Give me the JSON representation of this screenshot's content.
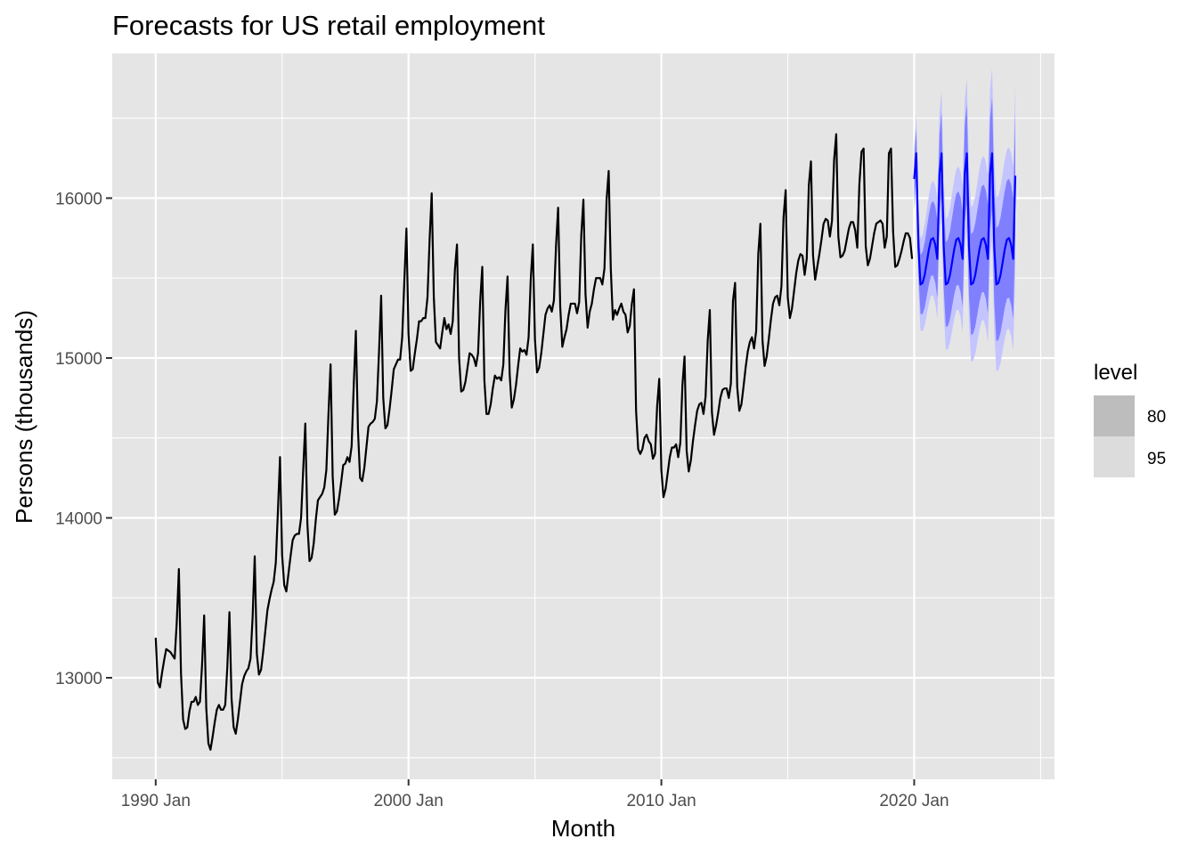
{
  "chart_data": {
    "type": "line",
    "title": "Forecasts for US retail employment",
    "xlabel": "Month",
    "ylabel": "Persons (thousands)",
    "x_ticks": [
      {
        "label": "1990 Jan",
        "t": 1990.0
      },
      {
        "label": "2000 Jan",
        "t": 2000.0
      },
      {
        "label": "2010 Jan",
        "t": 2010.0
      },
      {
        "label": "2020 Jan",
        "t": 2020.0
      }
    ],
    "y_ticks": [
      13000,
      14000,
      15000,
      16000
    ],
    "xlim": [
      1988.28,
      2025.55
    ],
    "ylim": [
      12365,
      16905
    ],
    "grid": true,
    "legend": {
      "title": "level",
      "position": "right",
      "entries": [
        {
          "label": "80",
          "color": "#bdbdbd"
        },
        {
          "label": "95",
          "color": "#dcdcdc"
        }
      ]
    },
    "colors": {
      "history": "#000000",
      "forecast": "#0000ff",
      "band_80": "#8080ff",
      "band_95": "#c4c4ff",
      "panel": "#e5e5e5",
      "grid": "#ffffff"
    },
    "history": {
      "start": "1990 Jan",
      "frequency": "monthly",
      "annual_pattern": [
        {
          "year": 1990,
          "values": [
            13250,
            12970,
            12940,
            13030,
            13110,
            13180,
            13170,
            13160,
            13140,
            13120,
            13350,
            13680
          ]
        },
        {
          "year": 1991,
          "values": [
            13030,
            12740,
            12680,
            12690,
            12790,
            12850,
            12850,
            12880,
            12830,
            12850,
            13080,
            13390
          ]
        },
        {
          "year": 1992,
          "values": [
            12810,
            12590,
            12550,
            12630,
            12720,
            12800,
            12830,
            12800,
            12800,
            12830,
            13070,
            13410
          ]
        },
        {
          "year": 1993,
          "values": [
            12870,
            12690,
            12650,
            12740,
            12850,
            12960,
            13010,
            13040,
            13060,
            13120,
            13380,
            13760
          ]
        },
        {
          "year": 1994,
          "values": [
            13150,
            13020,
            13050,
            13160,
            13290,
            13420,
            13490,
            13550,
            13600,
            13720,
            14040,
            14380
          ]
        },
        {
          "year": 1995,
          "values": [
            13770,
            13580,
            13540,
            13650,
            13760,
            13860,
            13890,
            13900,
            13900,
            14000,
            14300,
            14590
          ]
        },
        {
          "year": 1996,
          "values": [
            13960,
            13730,
            13750,
            13840,
            13990,
            14110,
            14130,
            14150,
            14190,
            14300,
            14650,
            14960
          ]
        },
        {
          "year": 1997,
          "values": [
            14260,
            14020,
            14040,
            14120,
            14220,
            14330,
            14340,
            14380,
            14350,
            14450,
            14830,
            15170
          ]
        },
        {
          "year": 1998,
          "values": [
            14550,
            14250,
            14230,
            14310,
            14440,
            14570,
            14590,
            14600,
            14620,
            14730,
            15040,
            15390
          ]
        },
        {
          "year": 1999,
          "values": [
            14750,
            14560,
            14580,
            14680,
            14800,
            14930,
            14960,
            14990,
            14990,
            15130,
            15480,
            15810
          ]
        },
        {
          "year": 2000,
          "values": [
            15150,
            14920,
            14930,
            15030,
            15120,
            15230,
            15230,
            15250,
            15250,
            15380,
            15740,
            16030
          ]
        },
        {
          "year": 2001,
          "values": [
            15380,
            15100,
            15080,
            15060,
            15160,
            15250,
            15180,
            15210,
            15150,
            15230,
            15550,
            15710
          ]
        },
        {
          "year": 2002,
          "values": [
            15000,
            14790,
            14800,
            14850,
            14940,
            15030,
            15020,
            15000,
            14950,
            15030,
            15350,
            15570
          ]
        },
        {
          "year": 2003,
          "values": [
            14860,
            14650,
            14650,
            14710,
            14810,
            14890,
            14870,
            14880,
            14860,
            14960,
            15300,
            15510
          ]
        },
        {
          "year": 2004,
          "values": [
            14900,
            14690,
            14740,
            14830,
            14950,
            15060,
            15040,
            15050,
            15020,
            15130,
            15490,
            15710
          ]
        },
        {
          "year": 2005,
          "values": [
            15120,
            14910,
            14940,
            15030,
            15150,
            15270,
            15310,
            15330,
            15290,
            15360,
            15700,
            15940
          ]
        },
        {
          "year": 2006,
          "values": [
            15320,
            15070,
            15130,
            15180,
            15270,
            15340,
            15340,
            15340,
            15280,
            15350,
            15770,
            15990
          ]
        },
        {
          "year": 2007,
          "values": [
            15400,
            15190,
            15290,
            15340,
            15430,
            15500,
            15500,
            15500,
            15460,
            15560,
            15990,
            16170
          ]
        },
        {
          "year": 2008,
          "values": [
            15560,
            15240,
            15300,
            15270,
            15310,
            15340,
            15290,
            15270,
            15160,
            15200,
            15340,
            15430
          ]
        },
        {
          "year": 2009,
          "values": [
            14670,
            14430,
            14400,
            14430,
            14500,
            14520,
            14480,
            14460,
            14370,
            14400,
            14700,
            14870
          ]
        },
        {
          "year": 2010,
          "values": [
            14300,
            14130,
            14180,
            14280,
            14380,
            14440,
            14440,
            14460,
            14380,
            14470,
            14830,
            15010
          ]
        },
        {
          "year": 2011,
          "values": [
            14420,
            14290,
            14360,
            14480,
            14580,
            14670,
            14710,
            14720,
            14650,
            14760,
            15110,
            15300
          ]
        },
        {
          "year": 2012,
          "values": [
            14660,
            14520,
            14580,
            14660,
            14750,
            14800,
            14810,
            14810,
            14750,
            14840,
            15360,
            15470
          ]
        },
        {
          "year": 2013,
          "values": [
            14820,
            14670,
            14710,
            14820,
            14940,
            15040,
            15100,
            15130,
            15060,
            15170,
            15650,
            15840
          ]
        },
        {
          "year": 2014,
          "values": [
            15110,
            14950,
            15010,
            15120,
            15240,
            15340,
            15380,
            15390,
            15330,
            15450,
            15880,
            16050
          ]
        },
        {
          "year": 2015,
          "values": [
            15380,
            15250,
            15310,
            15420,
            15530,
            15610,
            15650,
            15640,
            15520,
            15620,
            16080,
            16230
          ]
        },
        {
          "year": 2016,
          "values": [
            15640,
            15490,
            15570,
            15650,
            15740,
            15840,
            15870,
            15860,
            15760,
            15860,
            16240,
            16400
          ]
        },
        {
          "year": 2017,
          "values": [
            15760,
            15630,
            15640,
            15670,
            15740,
            15810,
            15850,
            15850,
            15800,
            15690,
            16090,
            16290
          ]
        },
        {
          "year": 2018,
          "values": [
            16310,
            15700,
            15580,
            15620,
            15700,
            15780,
            15840,
            15850,
            15860,
            15840,
            15690,
            15760
          ]
        },
        {
          "year": 2019,
          "values": [
            16280,
            16310,
            15790,
            15570,
            15580,
            15620,
            15670,
            15730,
            15780,
            15780,
            15750,
            15620
          ]
        }
      ]
    },
    "forecast": {
      "start": "2020 Jan",
      "frequency": "monthly",
      "values_by_year": [
        [
          16120,
          16280,
          15700,
          15460,
          15470,
          15520,
          15600,
          15680,
          15740,
          15750,
          15710,
          15620
        ],
        [
          16150,
          16280,
          15700,
          15460,
          15470,
          15520,
          15600,
          15680,
          15740,
          15750,
          15710,
          15620
        ],
        [
          16150,
          16280,
          15700,
          15460,
          15470,
          15520,
          15600,
          15680,
          15740,
          15750,
          15710,
          15620
        ],
        [
          16150,
          16280,
          15700,
          15460,
          15470,
          15520,
          15600,
          15680,
          15740,
          15750,
          15710,
          15620
        ],
        [
          16140
        ]
      ],
      "interval_80": {
        "half_width_start": 120,
        "half_width_end": 380
      },
      "interval_95": {
        "half_width_start": 190,
        "half_width_end": 580
      }
    }
  }
}
